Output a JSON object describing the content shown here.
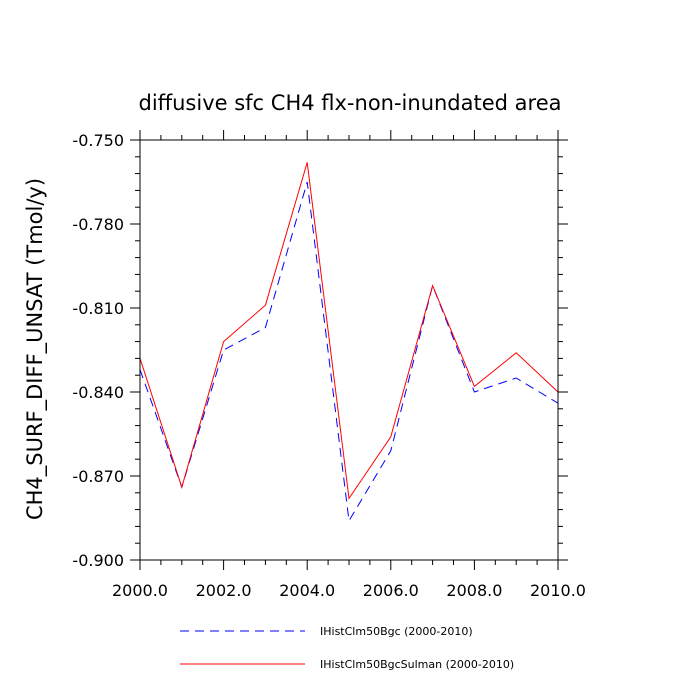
{
  "chart_data": {
    "type": "line",
    "title": "diffusive sfc CH4 flx-non-inundated area",
    "xlabel": "",
    "ylabel": "CH4_SURF_DIFF_UNSAT  (Tmol/y)",
    "xlim": [
      2000,
      2010
    ],
    "ylim": [
      -0.9,
      -0.75
    ],
    "x_ticks": [
      2000,
      2002,
      2004,
      2006,
      2008,
      2010
    ],
    "x_tick_labels": [
      "2000.0",
      "2002.0",
      "2004.0",
      "2006.0",
      "2008.0",
      "2010.0"
    ],
    "y_ticks": [
      -0.75,
      -0.78,
      -0.81,
      -0.84,
      -0.87,
      -0.9
    ],
    "y_tick_labels": [
      "-0.750",
      "-0.780",
      "-0.810",
      "-0.840",
      "-0.870",
      "-0.900"
    ],
    "x": [
      2000,
      2001,
      2002,
      2003,
      2004,
      2005,
      2006,
      2007,
      2008,
      2009,
      2010
    ],
    "series": [
      {
        "name": "IHistClm50Bgc (2000-2010)",
        "color": "#0000ff",
        "style": "dashed",
        "values": [
          -0.832,
          -0.874,
          -0.825,
          -0.817,
          -0.765,
          -0.886,
          -0.861,
          -0.802,
          -0.84,
          -0.835,
          -0.844
        ]
      },
      {
        "name": "IHistClm50BgcSulman (2000-2010)",
        "color": "#ff0000",
        "style": "solid",
        "values": [
          -0.828,
          -0.874,
          -0.822,
          -0.809,
          -0.758,
          -0.878,
          -0.856,
          -0.802,
          -0.838,
          -0.826,
          -0.84
        ]
      }
    ],
    "legend_position": "bottom"
  }
}
